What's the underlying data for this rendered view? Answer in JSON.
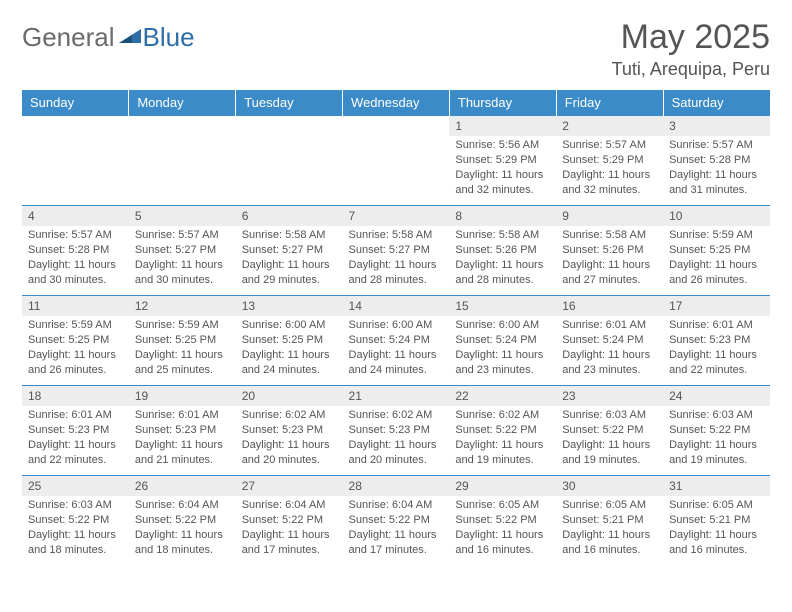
{
  "brand": {
    "part1": "General",
    "part2": "Blue"
  },
  "header": {
    "title": "May 2025",
    "location": "Tuti, Arequipa, Peru"
  },
  "colors": {
    "header_bg": "#3b8bc9",
    "header_text": "#ffffff",
    "daynum_bg": "#ededed",
    "cell_border": "#3b8bc9",
    "logo_accent": "#2f6fa8",
    "text": "#555555"
  },
  "weekdays": [
    "Sunday",
    "Monday",
    "Tuesday",
    "Wednesday",
    "Thursday",
    "Friday",
    "Saturday"
  ],
  "weeks": [
    [
      {
        "empty": true
      },
      {
        "empty": true
      },
      {
        "empty": true
      },
      {
        "empty": true
      },
      {
        "n": "1",
        "sr": "5:56 AM",
        "ss": "5:29 PM",
        "dl": "11 hours and 32 minutes."
      },
      {
        "n": "2",
        "sr": "5:57 AM",
        "ss": "5:29 PM",
        "dl": "11 hours and 32 minutes."
      },
      {
        "n": "3",
        "sr": "5:57 AM",
        "ss": "5:28 PM",
        "dl": "11 hours and 31 minutes."
      }
    ],
    [
      {
        "n": "4",
        "sr": "5:57 AM",
        "ss": "5:28 PM",
        "dl": "11 hours and 30 minutes."
      },
      {
        "n": "5",
        "sr": "5:57 AM",
        "ss": "5:27 PM",
        "dl": "11 hours and 30 minutes."
      },
      {
        "n": "6",
        "sr": "5:58 AM",
        "ss": "5:27 PM",
        "dl": "11 hours and 29 minutes."
      },
      {
        "n": "7",
        "sr": "5:58 AM",
        "ss": "5:27 PM",
        "dl": "11 hours and 28 minutes."
      },
      {
        "n": "8",
        "sr": "5:58 AM",
        "ss": "5:26 PM",
        "dl": "11 hours and 28 minutes."
      },
      {
        "n": "9",
        "sr": "5:58 AM",
        "ss": "5:26 PM",
        "dl": "11 hours and 27 minutes."
      },
      {
        "n": "10",
        "sr": "5:59 AM",
        "ss": "5:25 PM",
        "dl": "11 hours and 26 minutes."
      }
    ],
    [
      {
        "n": "11",
        "sr": "5:59 AM",
        "ss": "5:25 PM",
        "dl": "11 hours and 26 minutes."
      },
      {
        "n": "12",
        "sr": "5:59 AM",
        "ss": "5:25 PM",
        "dl": "11 hours and 25 minutes."
      },
      {
        "n": "13",
        "sr": "6:00 AM",
        "ss": "5:25 PM",
        "dl": "11 hours and 24 minutes."
      },
      {
        "n": "14",
        "sr": "6:00 AM",
        "ss": "5:24 PM",
        "dl": "11 hours and 24 minutes."
      },
      {
        "n": "15",
        "sr": "6:00 AM",
        "ss": "5:24 PM",
        "dl": "11 hours and 23 minutes."
      },
      {
        "n": "16",
        "sr": "6:01 AM",
        "ss": "5:24 PM",
        "dl": "11 hours and 23 minutes."
      },
      {
        "n": "17",
        "sr": "6:01 AM",
        "ss": "5:23 PM",
        "dl": "11 hours and 22 minutes."
      }
    ],
    [
      {
        "n": "18",
        "sr": "6:01 AM",
        "ss": "5:23 PM",
        "dl": "11 hours and 22 minutes."
      },
      {
        "n": "19",
        "sr": "6:01 AM",
        "ss": "5:23 PM",
        "dl": "11 hours and 21 minutes."
      },
      {
        "n": "20",
        "sr": "6:02 AM",
        "ss": "5:23 PM",
        "dl": "11 hours and 20 minutes."
      },
      {
        "n": "21",
        "sr": "6:02 AM",
        "ss": "5:23 PM",
        "dl": "11 hours and 20 minutes."
      },
      {
        "n": "22",
        "sr": "6:02 AM",
        "ss": "5:22 PM",
        "dl": "11 hours and 19 minutes."
      },
      {
        "n": "23",
        "sr": "6:03 AM",
        "ss": "5:22 PM",
        "dl": "11 hours and 19 minutes."
      },
      {
        "n": "24",
        "sr": "6:03 AM",
        "ss": "5:22 PM",
        "dl": "11 hours and 19 minutes."
      }
    ],
    [
      {
        "n": "25",
        "sr": "6:03 AM",
        "ss": "5:22 PM",
        "dl": "11 hours and 18 minutes."
      },
      {
        "n": "26",
        "sr": "6:04 AM",
        "ss": "5:22 PM",
        "dl": "11 hours and 18 minutes."
      },
      {
        "n": "27",
        "sr": "6:04 AM",
        "ss": "5:22 PM",
        "dl": "11 hours and 17 minutes."
      },
      {
        "n": "28",
        "sr": "6:04 AM",
        "ss": "5:22 PM",
        "dl": "11 hours and 17 minutes."
      },
      {
        "n": "29",
        "sr": "6:05 AM",
        "ss": "5:22 PM",
        "dl": "11 hours and 16 minutes."
      },
      {
        "n": "30",
        "sr": "6:05 AM",
        "ss": "5:21 PM",
        "dl": "11 hours and 16 minutes."
      },
      {
        "n": "31",
        "sr": "6:05 AM",
        "ss": "5:21 PM",
        "dl": "11 hours and 16 minutes."
      }
    ]
  ],
  "labels": {
    "sunrise": "Sunrise:",
    "sunset": "Sunset:",
    "daylight": "Daylight:"
  }
}
